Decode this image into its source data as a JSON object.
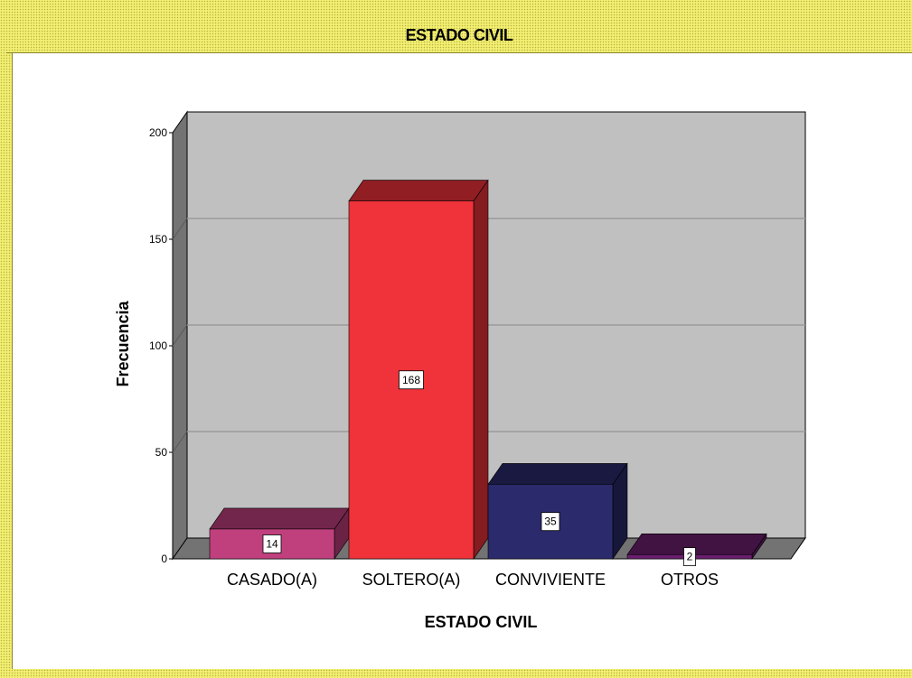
{
  "window": {
    "title": "ESTADO CIVIL"
  },
  "chart_data": {
    "type": "bar",
    "title": "ESTADO CIVIL",
    "xlabel": "ESTADO CIVIL",
    "ylabel": "Frecuencia",
    "categories": [
      "CASADO(A)",
      "SOLTERO(A)",
      "CONVIVIENTE",
      "OTROS"
    ],
    "values": [
      14,
      168,
      35,
      2
    ],
    "data_labels": [
      "14",
      "168",
      "35",
      "2"
    ],
    "ylim": [
      0,
      200
    ],
    "yticks": [
      0,
      50,
      100,
      150,
      200
    ],
    "grid": true,
    "style_3d": true,
    "bar_colors": [
      "#c0407e",
      "#f0323a",
      "#2a2a6c",
      "#6a1f6e"
    ],
    "background_color": "#c0c0c0"
  }
}
